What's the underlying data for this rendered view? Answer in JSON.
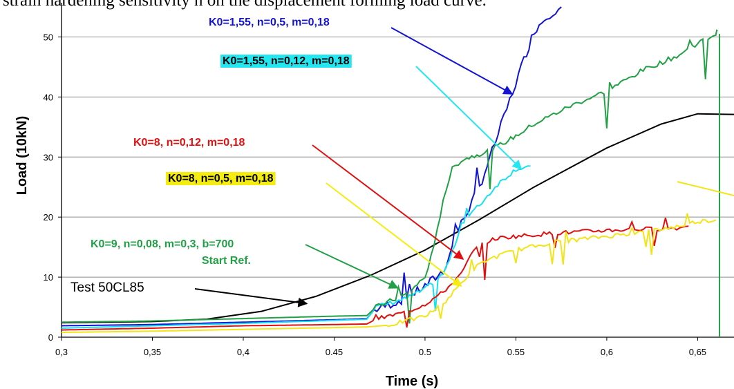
{
  "caption": "strain hardening sensitivity n on the displacement forming load curve.",
  "chart_data": {
    "type": "line",
    "xlabel": "Time (s)",
    "ylabel": "Load (10kN)",
    "xlim": [
      0.3,
      0.67
    ],
    "ylim": [
      0,
      55
    ],
    "xticks": [
      {
        "v": 0.3,
        "label": "0,3"
      },
      {
        "v": 0.35,
        "label": "0,35"
      },
      {
        "v": 0.4,
        "label": "0,4"
      },
      {
        "v": 0.45,
        "label": "0.45"
      },
      {
        "v": 0.5,
        "label": "0.5"
      },
      {
        "v": 0.55,
        "label": "0.55"
      },
      {
        "v": 0.6,
        "label": "0,6"
      },
      {
        "v": 0.65,
        "label": "0,65"
      }
    ],
    "yticks": [
      {
        "v": 0,
        "label": "0"
      },
      {
        "v": 10,
        "label": "10"
      },
      {
        "v": 20,
        "label": "20"
      },
      {
        "v": 30,
        "label": "30"
      },
      {
        "v": 40,
        "label": "40"
      },
      {
        "v": 50,
        "label": "50"
      }
    ],
    "grid": "horizontal",
    "series": [
      {
        "color": "#000000",
        "points": [
          [
            0.3,
            2.4
          ],
          [
            0.35,
            2.6
          ],
          [
            0.38,
            3.0
          ],
          [
            0.41,
            4.3
          ],
          [
            0.44,
            6.8
          ],
          [
            0.47,
            10.3
          ],
          [
            0.5,
            14.5
          ],
          [
            0.53,
            19.6
          ],
          [
            0.56,
            25.0
          ],
          [
            0.6,
            31.5
          ],
          [
            0.63,
            35.5
          ],
          [
            0.65,
            37.2
          ],
          [
            0.67,
            37.1
          ]
        ],
        "noise": 0
      },
      {
        "color": "#1414d4",
        "points": [
          [
            0.3,
            1.9
          ],
          [
            0.35,
            2.1
          ],
          [
            0.4,
            2.5
          ],
          [
            0.45,
            2.9
          ],
          [
            0.468,
            3.1
          ],
          [
            0.472,
            4.5
          ],
          [
            0.49,
            6.5
          ],
          [
            0.5,
            8.5
          ],
          [
            0.51,
            11.0
          ],
          [
            0.515,
            15.0
          ],
          [
            0.52,
            19.0
          ],
          [
            0.53,
            25.0
          ],
          [
            0.537,
            31.0
          ],
          [
            0.545,
            38.0
          ],
          [
            0.553,
            45.0
          ],
          [
            0.56,
            51.0
          ],
          [
            0.567,
            53.5
          ],
          [
            0.575,
            55.0
          ]
        ],
        "noise": 1.5
      },
      {
        "color": "#18e0f0",
        "points": [
          [
            0.3,
            1.5
          ],
          [
            0.35,
            1.9
          ],
          [
            0.4,
            2.3
          ],
          [
            0.45,
            2.8
          ],
          [
            0.468,
            3.0
          ],
          [
            0.473,
            5.0
          ],
          [
            0.49,
            6.5
          ],
          [
            0.5,
            8.0
          ],
          [
            0.51,
            10.5
          ],
          [
            0.515,
            14.0
          ],
          [
            0.52,
            19.0
          ],
          [
            0.53,
            22.0
          ],
          [
            0.54,
            25.5
          ],
          [
            0.55,
            28.0
          ],
          [
            0.558,
            28.5
          ]
        ],
        "noise": 0.8
      },
      {
        "color": "#22a046",
        "points": [
          [
            0.3,
            2.5
          ],
          [
            0.35,
            2.7
          ],
          [
            0.4,
            3.1
          ],
          [
            0.45,
            3.5
          ],
          [
            0.468,
            3.6
          ],
          [
            0.473,
            5.0
          ],
          [
            0.49,
            7.2
          ],
          [
            0.5,
            10.0
          ],
          [
            0.505,
            15.0
          ],
          [
            0.51,
            23.0
          ],
          [
            0.515,
            28.0
          ],
          [
            0.52,
            29.5
          ],
          [
            0.53,
            30.5
          ],
          [
            0.54,
            31.8
          ],
          [
            0.55,
            33.5
          ],
          [
            0.56,
            35.5
          ],
          [
            0.58,
            38.5
          ],
          [
            0.6,
            41.0
          ],
          [
            0.62,
            44.5
          ],
          [
            0.64,
            47.0
          ],
          [
            0.65,
            49.0
          ],
          [
            0.66,
            50.5
          ],
          [
            0.661,
            51.0
          ]
        ],
        "noise": 0.8
      },
      {
        "color": "#e01010",
        "points": [
          [
            0.3,
            1.2
          ],
          [
            0.35,
            1.5
          ],
          [
            0.4,
            1.9
          ],
          [
            0.45,
            2.1
          ],
          [
            0.468,
            2.2
          ],
          [
            0.473,
            3.0
          ],
          [
            0.49,
            4.2
          ],
          [
            0.5,
            5.5
          ],
          [
            0.51,
            7.5
          ],
          [
            0.52,
            10.5
          ],
          [
            0.525,
            13.5
          ],
          [
            0.53,
            15.5
          ],
          [
            0.54,
            16.5
          ],
          [
            0.55,
            16.8
          ],
          [
            0.57,
            17.3
          ],
          [
            0.6,
            17.8
          ],
          [
            0.62,
            18.0
          ],
          [
            0.64,
            18.2
          ],
          [
            0.645,
            18.5
          ]
        ],
        "noise": 0.7
      },
      {
        "color": "#f2e418",
        "points": [
          [
            0.3,
            0.8
          ],
          [
            0.35,
            1.0
          ],
          [
            0.4,
            1.3
          ],
          [
            0.45,
            1.6
          ],
          [
            0.468,
            1.7
          ],
          [
            0.48,
            2.0
          ],
          [
            0.5,
            3.5
          ],
          [
            0.51,
            5.5
          ],
          [
            0.52,
            9.0
          ],
          [
            0.527,
            11.5
          ],
          [
            0.535,
            13.0
          ],
          [
            0.55,
            14.5
          ],
          [
            0.57,
            15.8
          ],
          [
            0.6,
            16.8
          ],
          [
            0.62,
            17.5
          ],
          [
            0.64,
            18.5
          ],
          [
            0.65,
            19.3
          ],
          [
            0.66,
            19.5
          ]
        ],
        "noise": 0.7
      }
    ],
    "annotations": [
      {
        "text": "K0=1,55, n=0,5, m=0,18",
        "color": "#1414d4",
        "bg": "",
        "arrow_to": [
          0.548,
          40.5
        ]
      },
      {
        "text": "K0=1,55, n=0,12, m=0,18",
        "color": "#000000",
        "bg": "#22e6f0",
        "arrow_to": [
          0.553,
          28.0
        ]
      },
      {
        "text": "K0=8, n=0,12, m=0,18",
        "color": "#e01010",
        "bg": "",
        "arrow_to": [
          0.521,
          13.0
        ]
      },
      {
        "text": "K0=8, n=0,5, m=0,18",
        "color": "#000000",
        "bg": "#f5ec10",
        "arrow_to": [
          0.52,
          8.5
        ]
      },
      {
        "text": "K0=9, n=0,08, m=0,3, b=700",
        "color": "#22a046",
        "bg": "",
        "arrow_to": [
          0.485,
          8.2
        ]
      },
      {
        "text": "Start Ref.",
        "color": "#22a046",
        "bg": "",
        "arrow_to": null
      },
      {
        "text": "Test 50CL85",
        "color": "#000000",
        "bg": "",
        "arrow_to": [
          0.435,
          5.6
        ]
      }
    ]
  }
}
